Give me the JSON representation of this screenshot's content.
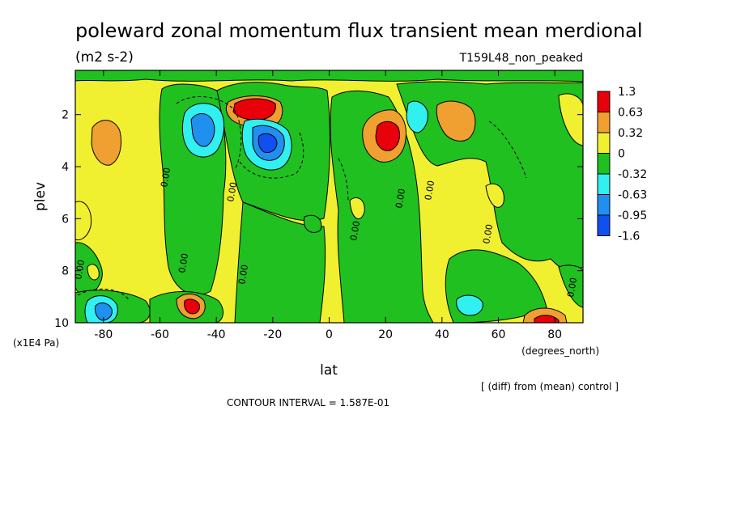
{
  "chart_data": {
    "type": "heatmap",
    "title": "poleward zonal momentum flux transient mean merdional",
    "units": "(m2 s-2)",
    "run_label": "T159L48_non_peaked",
    "xlabel": "lat",
    "x_units": "(degrees_north)",
    "ylabel": "plev",
    "y_units": "(x1E4 Pa)",
    "xlim": [
      -90,
      90
    ],
    "ylim": [
      10,
      0.3
    ],
    "x_ticks": [
      "-80",
      "-60",
      "-40",
      "-20",
      "0",
      "20",
      "40",
      "60",
      "80"
    ],
    "x_tick_values": [
      -80,
      -60,
      -40,
      -20,
      0,
      20,
      40,
      60,
      80
    ],
    "y_ticks": [
      "2",
      "4",
      "6",
      "8",
      "10"
    ],
    "y_tick_values": [
      2,
      4,
      6,
      8,
      10
    ],
    "contour_label": "0.00",
    "contour_interval_text": "CONTOUR INTERVAL = 1.587E-01",
    "note": "[ (diff) from (mean) control ]",
    "legend": {
      "labels": [
        "1.3",
        "0.63",
        "0.32",
        "0",
        "-0.32",
        "-0.63",
        "-0.95",
        "-1.6"
      ],
      "colors": [
        "#e8000b",
        "#f0a030",
        "#f0f030",
        "#20c020",
        "#30f0f0",
        "#2090f0",
        "#1050f0"
      ],
      "position": "right"
    },
    "features": [
      {
        "lat": -80,
        "plev": 2.8,
        "value": 0.5
      },
      {
        "lat": -50,
        "plev": 2.1,
        "value": -0.9
      },
      {
        "lat": -30,
        "plev": 1.8,
        "value": 1.3
      },
      {
        "lat": -20,
        "plev": 2.9,
        "value": -1.5
      },
      {
        "lat": 21,
        "plev": 2.6,
        "value": 1.3
      },
      {
        "lat": 31,
        "plev": 1.6,
        "value": -0.5
      },
      {
        "lat": 45,
        "plev": 2.0,
        "value": 0.8
      },
      {
        "lat": -80,
        "plev": 9.5,
        "value": -0.9
      },
      {
        "lat": -49,
        "plev": 9.3,
        "value": 1.2
      },
      {
        "lat": 50,
        "plev": 9.2,
        "value": -0.7
      },
      {
        "lat": 78,
        "plev": 9.8,
        "value": 1.1
      },
      {
        "lat": -62,
        "plev": 5.5,
        "value": -0.2
      },
      {
        "lat": 5,
        "plev": 8.0,
        "value": -0.2
      },
      {
        "lat": 62,
        "plev": 6.5,
        "value": -0.2
      }
    ]
  }
}
